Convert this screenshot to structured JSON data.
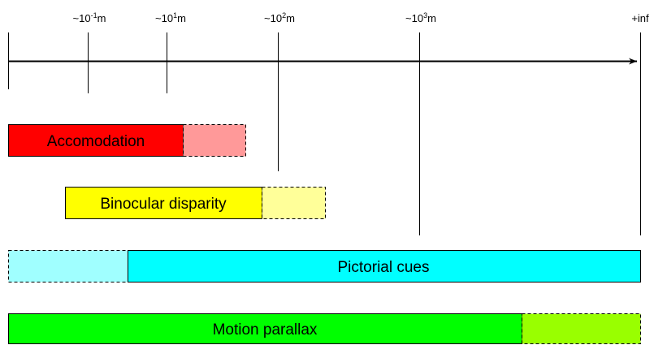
{
  "scale": {
    "ticks": [
      {
        "base": "~10",
        "exp": "-1",
        "unit": "m"
      },
      {
        "base": "~10",
        "exp": "1",
        "unit": "m"
      },
      {
        "base": "~10",
        "exp": "2",
        "unit": "m"
      },
      {
        "base": "~10",
        "exp": "3",
        "unit": "m"
      },
      {
        "label": "+inf"
      }
    ]
  },
  "cues": [
    {
      "label": "Accomodation"
    },
    {
      "label": "Binocular disparity"
    },
    {
      "label": "Pictorial cues"
    },
    {
      "label": "Motion parallax"
    }
  ]
}
